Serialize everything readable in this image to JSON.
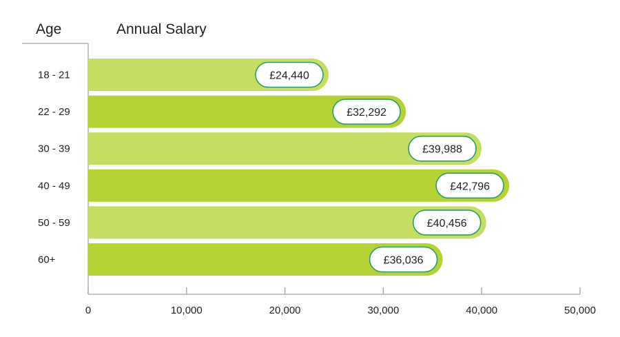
{
  "chart_data": {
    "type": "bar",
    "orientation": "horizontal",
    "column_headers": {
      "category": "Age",
      "value": "Annual Salary"
    },
    "categories": [
      "18 - 21",
      "22 - 29",
      "30 - 39",
      "40 - 49",
      "50 - 59",
      "60+"
    ],
    "values": [
      24440,
      32292,
      39988,
      42796,
      40456,
      36036
    ],
    "data_labels": [
      "£24,440",
      "£32,292",
      "£39,988",
      "£42,796",
      "£40,456",
      "£36,036"
    ],
    "xlim": [
      0,
      50000
    ],
    "x_ticks": [
      0,
      10000,
      20000,
      30000,
      40000,
      50000
    ],
    "x_tick_labels": [
      "0",
      "10,000",
      "20,000",
      "30,000",
      "40,000",
      "50,000"
    ],
    "grid": false,
    "colors": {
      "bar_light": "#c5de62",
      "bar_dark": "#b5d334",
      "label_border": "#2a9d6e",
      "axis": "#a0a0a0"
    }
  }
}
